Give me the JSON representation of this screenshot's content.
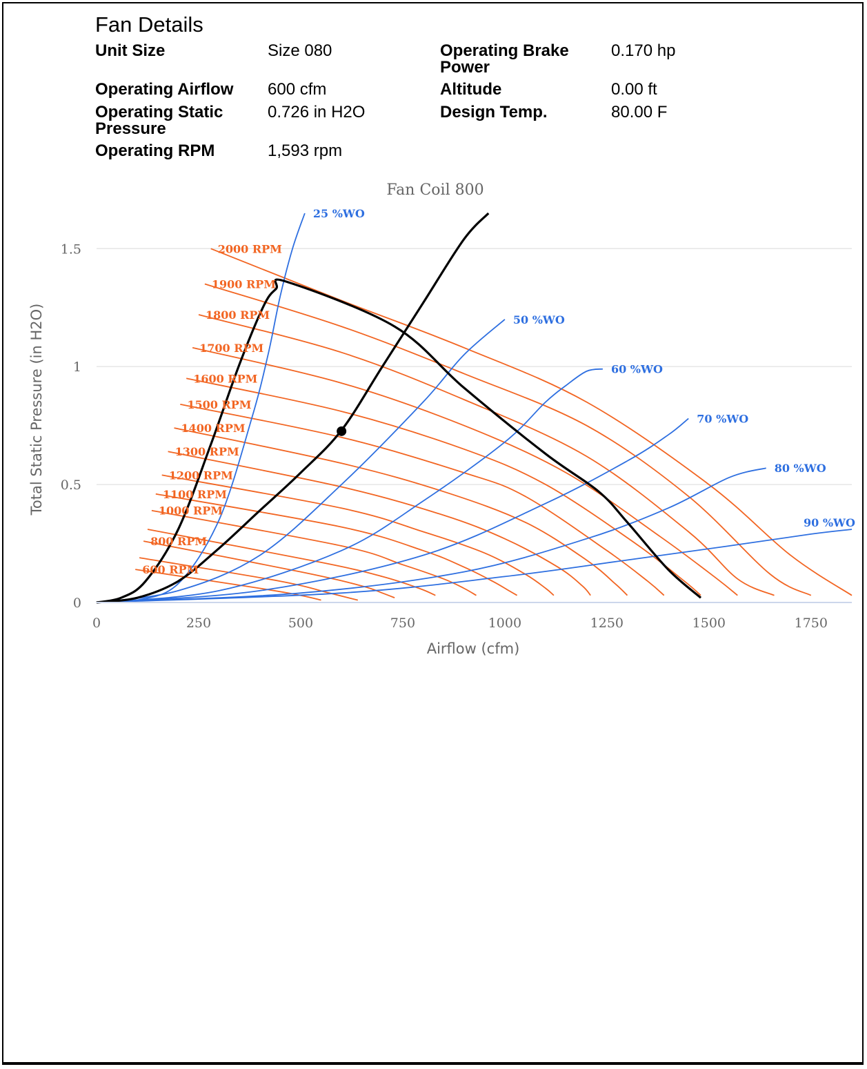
{
  "details": {
    "heading": "Fan Details",
    "unit_size_label": "Unit Size",
    "unit_size_value": "Size 080",
    "brake_power_label_1": "Operating Brake",
    "brake_power_label_2": "Power",
    "brake_power_value": "0.170 hp",
    "airflow_label": "Operating Airflow",
    "airflow_value": "600 cfm",
    "altitude_label": "Altitude",
    "altitude_value": "0.00 ft",
    "static_label_1": "Operating Static",
    "static_label_2": "Pressure",
    "static_value": "0.726 in H2O",
    "design_temp_label": "Design Temp.",
    "design_temp_value": "80.00 F",
    "rpm_label": "Operating RPM",
    "rpm_value": "1,593 rpm"
  },
  "chart_data": {
    "type": "line",
    "title": "Fan Coil 800",
    "xlabel": "Airflow (cfm)",
    "ylabel": "Total Static Pressure (in H2O)",
    "xlim": [
      0,
      1850
    ],
    "ylim": [
      0,
      1.65
    ],
    "x_ticks": [
      0,
      250,
      500,
      750,
      1000,
      1250,
      1500,
      1750
    ],
    "x_tick_labels": [
      "0",
      "250",
      "500",
      "750",
      "1000",
      "1250",
      "1500",
      "1750"
    ],
    "y_ticks": [
      0,
      0.5,
      1,
      1.5
    ],
    "y_tick_labels": [
      "0",
      "0.5",
      "1",
      "1.5"
    ],
    "grid": "horizontal",
    "colors": {
      "rpm": "#f26522",
      "wo": "#2e6fe0",
      "system": "#000000",
      "grid": "#e6e6e6",
      "axis": "#ccd6eb",
      "text": "#666666"
    },
    "rpm_curves": [
      {
        "label": "2000 RPM",
        "rpm": 2000,
        "points": [
          [
            280,
            1.5
          ],
          [
            600,
            1.28
          ],
          [
            900,
            1.08
          ],
          [
            1200,
            0.85
          ],
          [
            1500,
            0.5
          ],
          [
            1700,
            0.2
          ],
          [
            1850,
            0.03
          ]
        ]
      },
      {
        "label": "1900 RPM",
        "rpm": 1900,
        "points": [
          [
            265,
            1.35
          ],
          [
            600,
            1.17
          ],
          [
            900,
            0.97
          ],
          [
            1200,
            0.75
          ],
          [
            1450,
            0.45
          ],
          [
            1650,
            0.12
          ],
          [
            1750,
            0.03
          ]
        ]
      },
      {
        "label": "1800 RPM",
        "rpm": 1800,
        "points": [
          [
            250,
            1.22
          ],
          [
            600,
            1.06
          ],
          [
            900,
            0.86
          ],
          [
            1200,
            0.62
          ],
          [
            1450,
            0.3
          ],
          [
            1570,
            0.1
          ],
          [
            1660,
            0.03
          ]
        ]
      },
      {
        "label": "1700 RPM",
        "rpm": 1700,
        "points": [
          [
            235,
            1.08
          ],
          [
            600,
            0.93
          ],
          [
            900,
            0.75
          ],
          [
            1150,
            0.55
          ],
          [
            1380,
            0.28
          ],
          [
            1520,
            0.1
          ],
          [
            1570,
            0.03
          ]
        ]
      },
      {
        "label": "1600 RPM",
        "rpm": 1600,
        "points": [
          [
            220,
            0.95
          ],
          [
            600,
            0.81
          ],
          [
            900,
            0.65
          ],
          [
            1100,
            0.5
          ],
          [
            1320,
            0.25
          ],
          [
            1440,
            0.09
          ],
          [
            1480,
            0.03
          ]
        ]
      },
      {
        "label": "1500 RPM",
        "rpm": 1500,
        "points": [
          [
            205,
            0.84
          ],
          [
            600,
            0.7
          ],
          [
            900,
            0.55
          ],
          [
            1050,
            0.45
          ],
          [
            1250,
            0.22
          ],
          [
            1350,
            0.09
          ],
          [
            1390,
            0.03
          ]
        ]
      },
      {
        "label": "1400 RPM",
        "rpm": 1400,
        "points": [
          [
            190,
            0.74
          ],
          [
            600,
            0.59
          ],
          [
            850,
            0.47
          ],
          [
            1050,
            0.34
          ],
          [
            1200,
            0.18
          ],
          [
            1270,
            0.08
          ],
          [
            1300,
            0.03
          ]
        ]
      },
      {
        "label": "1300 RPM",
        "rpm": 1300,
        "points": [
          [
            175,
            0.64
          ],
          [
            600,
            0.49
          ],
          [
            850,
            0.37
          ],
          [
            1000,
            0.27
          ],
          [
            1130,
            0.15
          ],
          [
            1190,
            0.07
          ],
          [
            1210,
            0.03
          ]
        ]
      },
      {
        "label": "1200 RPM",
        "rpm": 1200,
        "points": [
          [
            160,
            0.54
          ],
          [
            600,
            0.4
          ],
          [
            800,
            0.3
          ],
          [
            950,
            0.21
          ],
          [
            1050,
            0.12
          ],
          [
            1100,
            0.06
          ],
          [
            1120,
            0.03
          ]
        ]
      },
      {
        "label": "1100 RPM",
        "rpm": 1100,
        "points": [
          [
            145,
            0.46
          ],
          [
            600,
            0.32
          ],
          [
            800,
            0.22
          ],
          [
            900,
            0.15
          ],
          [
            970,
            0.09
          ],
          [
            1010,
            0.05
          ],
          [
            1030,
            0.03
          ]
        ]
      },
      {
        "label": "1000 RPM",
        "rpm": 1000,
        "points": [
          [
            135,
            0.39
          ],
          [
            600,
            0.24
          ],
          [
            750,
            0.16
          ],
          [
            850,
            0.1
          ],
          [
            900,
            0.06
          ],
          [
            930,
            0.03
          ]
        ]
      },
      {
        "label": "",
        "rpm": 900,
        "points": [
          [
            125,
            0.31
          ],
          [
            550,
            0.17
          ],
          [
            700,
            0.11
          ],
          [
            790,
            0.06
          ],
          [
            830,
            0.03
          ]
        ]
      },
      {
        "label": "800 RPM",
        "rpm": 800,
        "points": [
          [
            115,
            0.26
          ],
          [
            500,
            0.13
          ],
          [
            650,
            0.07
          ],
          [
            700,
            0.04
          ],
          [
            730,
            0.02
          ]
        ]
      },
      {
        "label": "",
        "rpm": 700,
        "points": [
          [
            105,
            0.19
          ],
          [
            450,
            0.09
          ],
          [
            570,
            0.04
          ],
          [
            640,
            0.01
          ]
        ]
      },
      {
        "label": "600 RPM",
        "rpm": 600,
        "points": [
          [
            95,
            0.14
          ],
          [
            400,
            0.06
          ],
          [
            500,
            0.03
          ],
          [
            550,
            0.01
          ]
        ]
      }
    ],
    "wo_curves": [
      {
        "label": "25 %WO",
        "points": [
          [
            0,
            0
          ],
          [
            100,
            0.01
          ],
          [
            200,
            0.08
          ],
          [
            300,
            0.35
          ],
          [
            380,
            0.78
          ],
          [
            420,
            1.05
          ],
          [
            450,
            1.3
          ],
          [
            480,
            1.5
          ],
          [
            510,
            1.65
          ]
        ]
      },
      {
        "label": "50 %WO",
        "points": [
          [
            0,
            0
          ],
          [
            200,
            0.05
          ],
          [
            400,
            0.2
          ],
          [
            600,
            0.5
          ],
          [
            800,
            0.85
          ],
          [
            900,
            1.05
          ],
          [
            1000,
            1.2
          ]
        ]
      },
      {
        "label": "60 %WO",
        "points": [
          [
            0,
            0
          ],
          [
            300,
            0.05
          ],
          [
            600,
            0.22
          ],
          [
            800,
            0.43
          ],
          [
            1000,
            0.68
          ],
          [
            1100,
            0.85
          ],
          [
            1150,
            0.92
          ],
          [
            1200,
            0.98
          ],
          [
            1240,
            0.99
          ]
        ]
      },
      {
        "label": "70 %WO",
        "points": [
          [
            0,
            0
          ],
          [
            400,
            0.05
          ],
          [
            800,
            0.2
          ],
          [
            1100,
            0.42
          ],
          [
            1300,
            0.6
          ],
          [
            1400,
            0.71
          ],
          [
            1450,
            0.78
          ]
        ]
      },
      {
        "label": "80 %WO",
        "points": [
          [
            0,
            0
          ],
          [
            500,
            0.04
          ],
          [
            900,
            0.13
          ],
          [
            1200,
            0.27
          ],
          [
            1400,
            0.4
          ],
          [
            1550,
            0.53
          ],
          [
            1640,
            0.57
          ]
        ]
      },
      {
        "label": "90 %WO",
        "points": [
          [
            0,
            0
          ],
          [
            600,
            0.04
          ],
          [
            1000,
            0.11
          ],
          [
            1300,
            0.18
          ],
          [
            1550,
            0.24
          ],
          [
            1750,
            0.29
          ],
          [
            1850,
            0.31
          ]
        ]
      }
    ],
    "system_curve": {
      "points": [
        [
          0,
          0
        ],
        [
          100,
          0.02
        ],
        [
          200,
          0.09
        ],
        [
          300,
          0.23
        ],
        [
          400,
          0.39
        ],
        [
          500,
          0.55
        ],
        [
          600,
          0.73
        ],
        [
          700,
          1.0
        ],
        [
          800,
          1.27
        ],
        [
          900,
          1.54
        ],
        [
          960,
          1.65
        ]
      ]
    },
    "envelope": {
      "points": [
        [
          0,
          0
        ],
        [
          60,
          0.02
        ],
        [
          120,
          0.09
        ],
        [
          200,
          0.31
        ],
        [
          280,
          0.67
        ],
        [
          350,
          1.01
        ],
        [
          410,
          1.26
        ],
        [
          440,
          1.33
        ],
        [
          465,
          1.36
        ],
        [
          730,
          1.17
        ],
        [
          900,
          0.91
        ],
        [
          1100,
          0.63
        ],
        [
          1230,
          0.47
        ],
        [
          1300,
          0.34
        ],
        [
          1400,
          0.14
        ],
        [
          1480,
          0.02
        ]
      ]
    },
    "operating_point": {
      "x": 600,
      "y": 0.726
    }
  }
}
